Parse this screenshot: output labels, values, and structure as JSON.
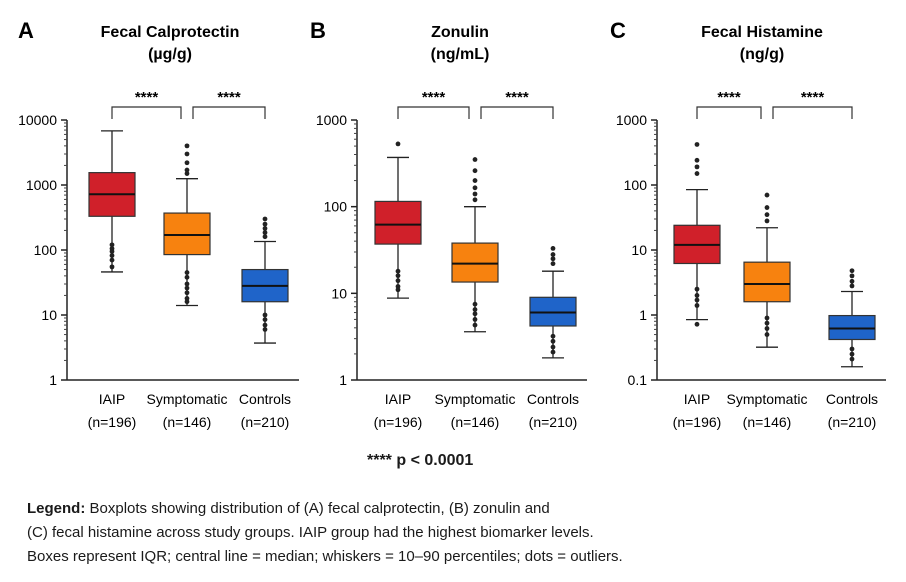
{
  "chart_data": [
    {
      "panel_letter": "A",
      "type": "box",
      "title": "Fecal Calprotectin",
      "subtitle": "(µg/g)",
      "y_scale": "log",
      "ylim": [
        1,
        10000
      ],
      "yticks": [
        "1",
        "10",
        "100",
        "1000",
        "10000"
      ],
      "yticks_values": [
        1,
        10,
        100,
        1000,
        10000
      ],
      "categories": [
        "IAIP",
        "Symptomatic",
        "Controls"
      ],
      "category_n": [
        "(n=196)",
        "(n=146)",
        "(n=210)"
      ],
      "colors": [
        "#d0202a",
        "#f7820f",
        "#1f64c9"
      ],
      "significance": [
        "****",
        "****"
      ],
      "boxes": [
        {
          "whisker_low": 46,
          "q1": 330,
          "median": 720,
          "q3": 1550,
          "whisker_high": 6800,
          "outliers": [
            120,
            105,
            95,
            82,
            70,
            55
          ]
        },
        {
          "whisker_low": 14,
          "q1": 85,
          "median": 170,
          "q3": 370,
          "whisker_high": 1250,
          "outliers": [
            4000,
            3000,
            2200,
            1700,
            1500,
            45,
            38,
            30,
            26,
            22,
            18,
            16
          ]
        },
        {
          "whisker_low": 3.7,
          "q1": 16,
          "median": 28,
          "q3": 50,
          "whisker_high": 135,
          "outliers": [
            300,
            250,
            215,
            185,
            160,
            10,
            8.5,
            7,
            6
          ]
        }
      ]
    },
    {
      "panel_letter": "B",
      "type": "box",
      "title": "Zonulin",
      "subtitle": "(ng/mL)",
      "y_scale": "log",
      "ylim": [
        1,
        1000
      ],
      "yticks": [
        "1",
        "10",
        "100",
        "1000"
      ],
      "yticks_values": [
        1,
        10,
        100,
        1000
      ],
      "categories": [
        "IAIP",
        "Symptomatic",
        "Controls"
      ],
      "category_n": [
        "(n=196)",
        "(n=146)",
        "(n=210)"
      ],
      "colors": [
        "#d0202a",
        "#f7820f",
        "#1f64c9"
      ],
      "significance": [
        "****",
        "****"
      ],
      "boxes": [
        {
          "whisker_low": 8.8,
          "q1": 37,
          "median": 62,
          "q3": 115,
          "whisker_high": 370,
          "outliers": [
            530,
            18,
            16,
            14,
            12,
            11
          ]
        },
        {
          "whisker_low": 3.6,
          "q1": 13.5,
          "median": 22,
          "q3": 38,
          "whisker_high": 100,
          "outliers": [
            350,
            260,
            200,
            165,
            140,
            120,
            7.5,
            6.5,
            5.8,
            5,
            4.3
          ]
        },
        {
          "whisker_low": 1.8,
          "q1": 4.2,
          "median": 6,
          "q3": 9,
          "whisker_high": 18,
          "outliers": [
            33,
            28,
            25,
            22,
            3.2,
            2.8,
            2.4,
            2.1
          ]
        }
      ]
    },
    {
      "panel_letter": "C",
      "type": "box",
      "title": "Fecal Histamine",
      "subtitle": "(ng/g)",
      "y_scale": "log",
      "ylim": [
        0.1,
        1000
      ],
      "yticks": [
        "0.1",
        "1",
        "10",
        "100",
        "1000"
      ],
      "yticks_values": [
        0.1,
        1,
        10,
        100,
        1000
      ],
      "categories": [
        "IAIP",
        "Symptomatic",
        "Controls"
      ],
      "category_n": [
        "(n=196)",
        "(n=146)",
        "(n=210)"
      ],
      "colors": [
        "#d0202a",
        "#f7820f",
        "#1f64c9"
      ],
      "significance": [
        "****",
        "****"
      ],
      "boxes": [
        {
          "whisker_low": 0.85,
          "q1": 6.2,
          "median": 12,
          "q3": 24,
          "whisker_high": 85,
          "outliers": [
            420,
            240,
            190,
            150,
            2.5,
            2,
            1.7,
            1.4,
            0.72
          ]
        },
        {
          "whisker_low": 0.32,
          "q1": 1.6,
          "median": 3,
          "q3": 6.5,
          "whisker_high": 22,
          "outliers": [
            70,
            45,
            35,
            28,
            0.9,
            0.75,
            0.62,
            0.5
          ]
        },
        {
          "whisker_low": 0.16,
          "q1": 0.42,
          "median": 0.62,
          "q3": 0.98,
          "whisker_high": 2.3,
          "outliers": [
            4.8,
            4,
            3.3,
            2.8,
            0.3,
            0.25,
            0.21
          ]
        }
      ]
    }
  ],
  "significance_note": "**** p < 0.0001",
  "legend": {
    "label": "Legend:",
    "line1_rest": " Boxplots showing distribution of (A) fecal calprotectin, (B) zonulin and",
    "line2": "(C) fecal histamine across study groups. IAIP group had the highest biomarker levels.",
    "line3": "Boxes represent IQR; central line = median; whiskers = 10–90 percentiles; dots = outliers."
  }
}
